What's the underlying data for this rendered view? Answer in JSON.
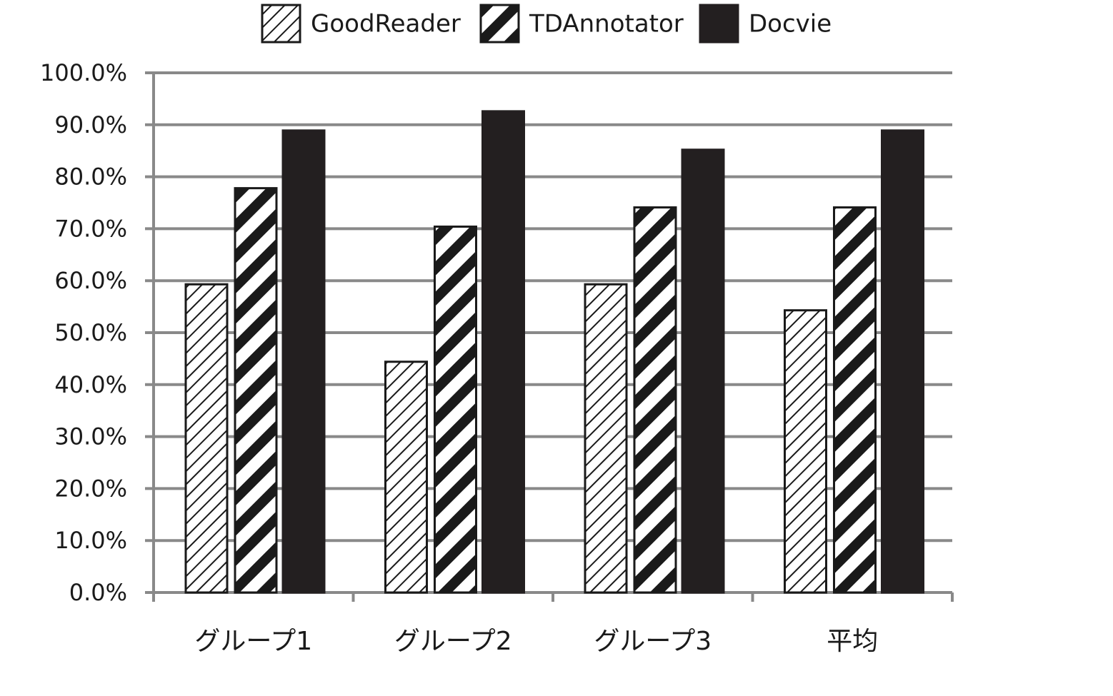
{
  "chart_data": {
    "type": "bar",
    "categories": [
      "グループ1",
      "グループ2",
      "グループ3",
      "平均"
    ],
    "series": [
      {
        "name": "GoodReader",
        "color": "#1a1a1a",
        "pattern": "thin-hatch",
        "values": [
          59.3,
          44.4,
          59.3,
          54.3
        ]
      },
      {
        "name": "TDAnnotator",
        "color": "#1a1a1a",
        "pattern": "wide-stripe",
        "values": [
          77.8,
          70.4,
          74.1,
          74.1
        ]
      },
      {
        "name": "Docvie",
        "color": "#231f20",
        "pattern": "solid",
        "values": [
          88.9,
          92.6,
          85.2,
          88.9
        ]
      }
    ],
    "ylim": [
      0,
      100
    ],
    "yticks": [
      {
        "value": 0,
        "label": "0.0%"
      },
      {
        "value": 10,
        "label": "10.0%"
      },
      {
        "value": 20,
        "label": "20.0%"
      },
      {
        "value": 30,
        "label": "30.0%"
      },
      {
        "value": 40,
        "label": "40.0%"
      },
      {
        "value": 50,
        "label": "50.0%"
      },
      {
        "value": 60,
        "label": "60.0%"
      },
      {
        "value": 70,
        "label": "70.0%"
      },
      {
        "value": 80,
        "label": "80.0%"
      },
      {
        "value": 90,
        "label": "90.0%"
      },
      {
        "value": 100,
        "label": "100.0%"
      }
    ],
    "grid": true,
    "legend": "top"
  }
}
